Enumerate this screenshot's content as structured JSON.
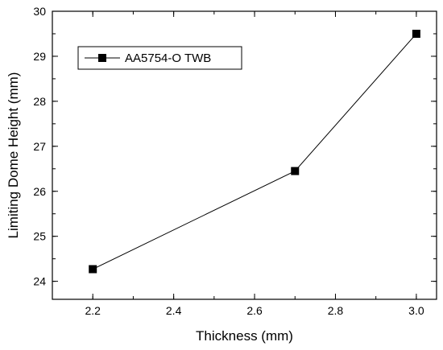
{
  "chart_data": {
    "type": "line",
    "xlabel": "Thickness (mm)",
    "ylabel": "Limiting Dome Height (mm)",
    "xlim": [
      2.1,
      3.05
    ],
    "ylim": [
      23.6,
      30
    ],
    "x_ticks": [
      2.2,
      2.4,
      2.6,
      2.8,
      3.0
    ],
    "x_tick_labels": [
      "2.2",
      "2.4",
      "2.6",
      "2.8",
      "3.0"
    ],
    "y_ticks": [
      24,
      25,
      26,
      27,
      28,
      29,
      30
    ],
    "y_tick_labels": [
      "24",
      "25",
      "26",
      "27",
      "28",
      "29",
      "30"
    ],
    "grid": false,
    "legend_position": "top-left",
    "series": [
      {
        "name": "AA5754-O TWB",
        "marker": "square",
        "color": "#000000",
        "x": [
          2.2,
          2.7,
          3.0
        ],
        "y": [
          24.27,
          26.45,
          29.5
        ]
      }
    ]
  }
}
